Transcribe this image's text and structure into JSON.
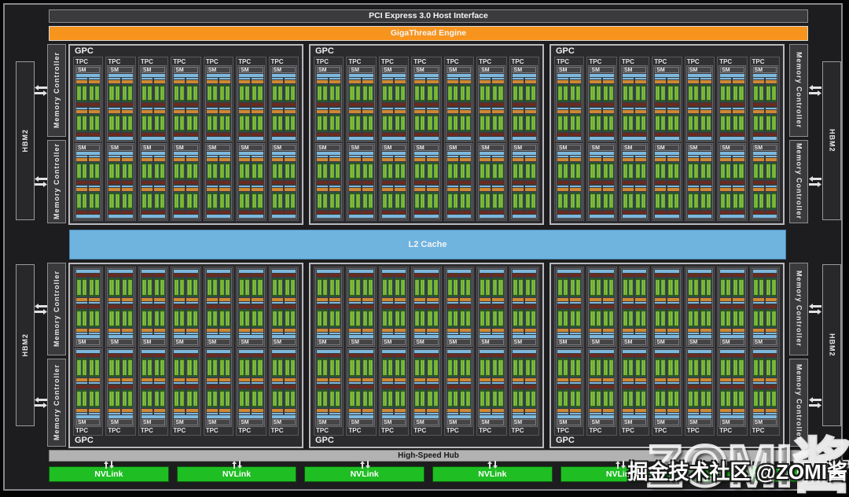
{
  "chip": {
    "host_interface": "PCI Express 3.0 Host Interface",
    "gigathread": "GigaThread Engine",
    "l2_cache": "L2 Cache",
    "high_speed_hub": "High-Speed Hub",
    "nvlink": {
      "label": "NVLink",
      "count": 6
    },
    "gpc": {
      "label": "GPC",
      "count": 6,
      "per_row": 3,
      "tpc_label": "TPC",
      "tpc_per_gpc": 7,
      "sm_label": "SM",
      "sm_per_tpc": 2,
      "partitions_per_sm": 2,
      "blocks_per_partition": 2
    },
    "memory": {
      "hbm2_label": "HBM2",
      "hbm2_count": 4,
      "mc_label": "Memory Controller",
      "mc_count": 8
    }
  },
  "watermark": {
    "large": "ZOMI酱",
    "small": "掘金技术社区 @ZOMI酱"
  },
  "colors": {
    "accent_orange": "#F7941E",
    "l2_blue": "#6FB3DF",
    "hub_gray": "#B2B2B2",
    "nvlink_green": "#1FBE23",
    "l1_blue": "#7DB8DD",
    "scheduler_orange": "#CE8833",
    "lsu_red": "#6B2A1F",
    "core_teal": "#2A4C53",
    "core_green_light": "#8CC63F",
    "core_green_dark": "#3F7D12"
  }
}
